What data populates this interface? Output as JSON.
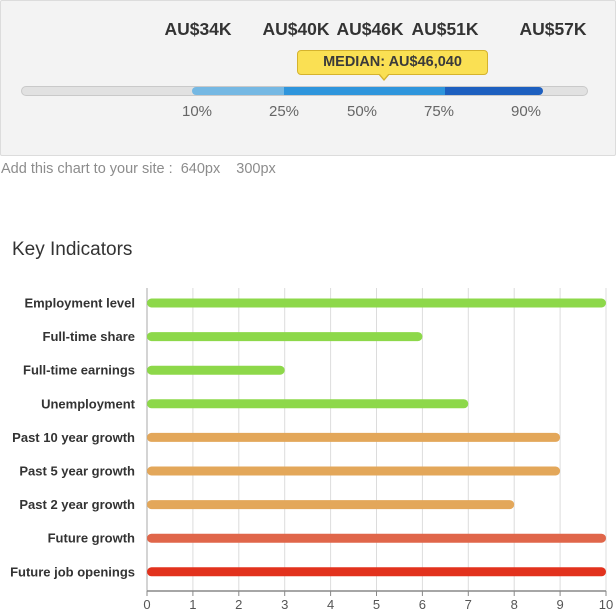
{
  "salary": {
    "values": [
      {
        "label": "AU$34K",
        "percentile": 10
      },
      {
        "label": "AU$40K",
        "percentile": 25
      },
      {
        "label": "AU$46K",
        "percentile": 50
      },
      {
        "label": "AU$51K",
        "percentile": 75
      },
      {
        "label": "AU$57K",
        "percentile": 90
      }
    ],
    "percentile_labels": [
      "10%",
      "25%",
      "50%",
      "75%",
      "90%"
    ],
    "median_label": "MEDIAN: AU$46,040",
    "band_colors": [
      "#75b8e3",
      "#2e95dc",
      "#1d5fbf"
    ]
  },
  "embed": {
    "text": "Add this chart to your site :",
    "option_1": "640px",
    "option_2": "300px"
  },
  "chart_data": {
    "type": "bar",
    "orientation": "horizontal",
    "title": "Key Indicators",
    "categories": [
      "Employment level",
      "Full-time share",
      "Full-time earnings",
      "Unemployment",
      "Past 10 year growth",
      "Past 5 year growth",
      "Past 2 year growth",
      "Future growth",
      "Future job openings"
    ],
    "values": [
      10,
      6,
      3,
      7,
      9,
      9,
      8,
      10,
      10
    ],
    "colors": [
      "#8dd84a",
      "#8dd84a",
      "#8dd84a",
      "#8dd84a",
      "#e3a75a",
      "#e3a75a",
      "#e3a75a",
      "#e0664a",
      "#e2321d"
    ],
    "xlim": [
      0,
      10
    ],
    "xticks": [
      0,
      1,
      2,
      3,
      4,
      5,
      6,
      7,
      8,
      9,
      10
    ],
    "grid": true
  }
}
